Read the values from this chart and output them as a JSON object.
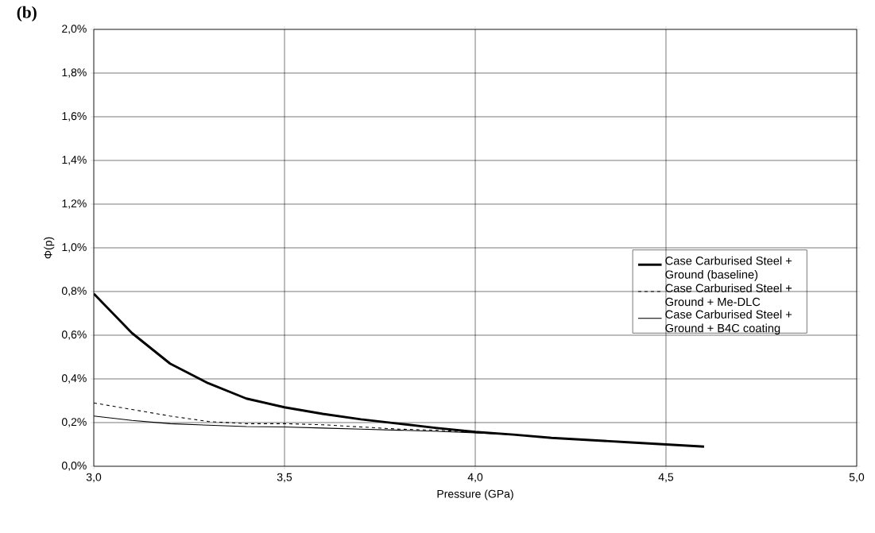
{
  "chart_data": {
    "type": "line",
    "title": "**(b)**",
    "xlabel": "Pressure (GPa)",
    "ylabel": "Φ(p)",
    "x": [
      3.0,
      3.1,
      3.2,
      3.3,
      3.4,
      3.5,
      3.6,
      3.7,
      3.8,
      3.9,
      4.0,
      4.1,
      4.2,
      4.3,
      4.4,
      4.5,
      4.6
    ],
    "series": [
      {
        "name": "Case Carburised Steel + Ground (baseline)",
        "color": "#000000",
        "line_style": "solid",
        "values": [
          0.79,
          0.61,
          0.47,
          0.38,
          0.31,
          0.27,
          0.24,
          0.215,
          0.195,
          0.175,
          0.157,
          0.145,
          0.13,
          0.12,
          0.11,
          0.1,
          0.09
        ]
      },
      {
        "name": "Case Carburised Steel + Ground + Me-DLC",
        "color": "#000000",
        "line_style": "dashed",
        "values": [
          0.29,
          0.26,
          0.23,
          0.205,
          0.195,
          0.195,
          0.19,
          0.18,
          0.17,
          0.165,
          0.155,
          0.145,
          0.13,
          0.12,
          0.11,
          0.1,
          0.09
        ]
      },
      {
        "name": "Case Carburised Steel + Ground + B4C coating",
        "color": "#000000",
        "line_style": "solid",
        "values": [
          0.23,
          0.21,
          0.195,
          0.188,
          0.182,
          0.18,
          0.175,
          0.17,
          0.165,
          0.16,
          0.153,
          0.145,
          0.13,
          0.12,
          0.11,
          0.1,
          0.09
        ]
      }
    ],
    "xlim": [
      3.0,
      5.0
    ],
    "xticks": [
      {
        "value": 3.0,
        "label": "3,0"
      },
      {
        "value": 3.5,
        "label": "3,5"
      },
      {
        "value": 4.0,
        "label": "4,0"
      },
      {
        "value": 4.5,
        "label": "4,5"
      },
      {
        "value": 5.0,
        "label": "5,0"
      }
    ],
    "ylim": [
      0,
      2.0
    ],
    "yticks": [
      {
        "value": 0,
        "label": "0,0%"
      },
      {
        "value": 0.2,
        "label": "0,2%"
      },
      {
        "value": 0.4,
        "label": "0,4%"
      },
      {
        "value": 0.6,
        "label": "0,6%"
      },
      {
        "value": 0.8,
        "label": "0,8%"
      },
      {
        "value": 1.0,
        "label": "1,0%"
      },
      {
        "value": 1.2,
        "label": "1,2%"
      },
      {
        "value": 1.4,
        "label": "1,4%"
      },
      {
        "value": 1.6,
        "label": "1,6%"
      },
      {
        "value": 1.8,
        "label": "1,8%"
      },
      {
        "value": 2.0,
        "label": "2,0%"
      }
    ],
    "grid": true,
    "legend": "right"
  }
}
